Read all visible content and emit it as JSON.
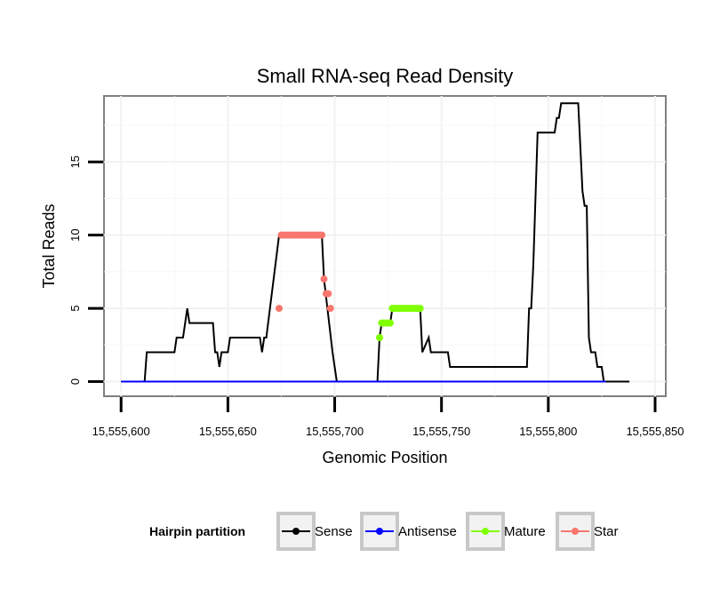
{
  "chart_data": {
    "type": "line",
    "title": "Small RNA-seq Read Density",
    "xlabel": "Genomic Position",
    "ylabel": "Total Reads",
    "xlim": [
      15555592,
      15555855
    ],
    "ylim": [
      -1,
      19.5
    ],
    "x_ticks": [
      15555600,
      15555650,
      15555700,
      15555750,
      15555800,
      15555850
    ],
    "x_tick_labels": [
      "15,555,600",
      "15,555,650",
      "15,555,700",
      "15,555,750",
      "15,555,800",
      "15,555,850"
    ],
    "y_ticks": [
      0,
      5,
      10,
      15
    ],
    "y_tick_labels": [
      "0",
      "5",
      "10",
      "15"
    ],
    "grid": true,
    "legend": {
      "title": "Hairpin partition",
      "position": "bottom",
      "entries": [
        "Sense",
        "Antisense",
        "Mature",
        "Star"
      ]
    },
    "series": [
      {
        "name": "Sense",
        "color": "#000000",
        "style": "line",
        "x": [
          15555600,
          15555611,
          15555612,
          15555625,
          15555626,
          15555629,
          15555630,
          15555631,
          15555632,
          15555643,
          15555644,
          15555645,
          15555646,
          15555647,
          15555648,
          15555650,
          15555651,
          15555658,
          15555665,
          15555666,
          15555667,
          15555668,
          15555674,
          15555675,
          15555694,
          15555695,
          15555699,
          15555700,
          15555701,
          15555720,
          15555721,
          15555722,
          15555726,
          15555727,
          15555728,
          15555740,
          15555741,
          15555744,
          15555745,
          15555746,
          15555747,
          15555753,
          15555754,
          15555755,
          15555790,
          15555791,
          15555792,
          15555793,
          15555795,
          15555803,
          15555804,
          15555805,
          15555806,
          15555807,
          15555808,
          15555809,
          15555810,
          15555814,
          15555815,
          15555816,
          15555817,
          15555818,
          15555819,
          15555820,
          15555821,
          15555822,
          15555823,
          15555824,
          15555825,
          15555826,
          15555827,
          15555828,
          15555838
        ],
        "values": [
          0,
          0,
          2,
          2,
          3,
          3,
          4,
          5,
          4,
          4,
          2,
          2,
          1,
          2,
          2,
          2,
          3,
          3,
          3,
          2,
          3,
          3,
          10,
          10,
          10,
          7,
          2,
          1,
          0,
          0,
          3,
          4,
          4,
          5,
          5,
          5,
          2,
          3,
          2,
          2,
          2,
          2,
          1,
          1,
          1,
          5,
          5,
          8,
          17,
          17,
          18,
          18,
          19,
          19,
          19,
          19,
          19,
          19,
          16,
          13,
          12,
          12,
          3,
          2,
          2,
          2,
          1,
          1,
          1,
          0,
          0,
          0,
          0
        ]
      },
      {
        "name": "Antisense",
        "color": "#0000ff",
        "style": "line",
        "x": [
          15555600,
          15555827
        ],
        "values": [
          0,
          0
        ]
      },
      {
        "name": "Mature",
        "color": "#80ff00",
        "style": "points",
        "x": [
          15555721,
          15555722,
          15555723,
          15555724,
          15555725,
          15555726,
          15555727,
          15555728,
          15555729,
          15555730,
          15555731,
          15555732,
          15555733,
          15555734,
          15555735,
          15555736,
          15555737,
          15555738,
          15555739,
          15555740
        ],
        "values": [
          3,
          4,
          4,
          4,
          4,
          4,
          5,
          5,
          5,
          5,
          5,
          5,
          5,
          5,
          5,
          5,
          5,
          5,
          5,
          5
        ]
      },
      {
        "name": "Star",
        "color": "#f8766d",
        "style": "points",
        "x": [
          15555674,
          15555675,
          15555676,
          15555677,
          15555678,
          15555679,
          15555680,
          15555681,
          15555682,
          15555683,
          15555684,
          15555685,
          15555686,
          15555687,
          15555688,
          15555689,
          15555690,
          15555691,
          15555692,
          15555693,
          15555694,
          15555695,
          15555696,
          15555697,
          15555698
        ],
        "values": [
          5,
          10,
          10,
          10,
          10,
          10,
          10,
          10,
          10,
          10,
          10,
          10,
          10,
          10,
          10,
          10,
          10,
          10,
          10,
          10,
          10,
          7,
          6,
          6,
          5
        ]
      }
    ]
  }
}
